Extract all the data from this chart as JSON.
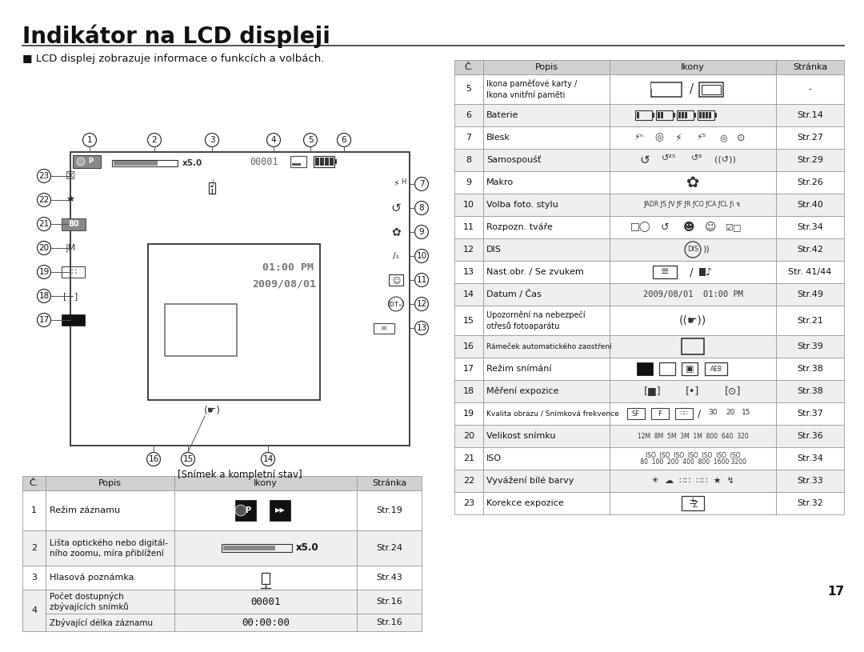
{
  "title": "Indikátor na LCD displeji",
  "subtitle": "■ LCD displej zobrazuje informace o funkcích a volbách.",
  "caption": "[Snímek a kompletní stav]",
  "page_number": "17",
  "bg_color": "#ffffff",
  "header_bg": "#d0d0d0",
  "row_alt_bg": "#efefef",
  "row_white_bg": "#ffffff",
  "border_color": "#999999",
  "left_table_headers": [
    "Č.",
    "Popis",
    "Ikony",
    "Stránka"
  ],
  "right_table_headers": [
    "Č.",
    "Popis",
    "Ikony",
    "Stránka"
  ]
}
